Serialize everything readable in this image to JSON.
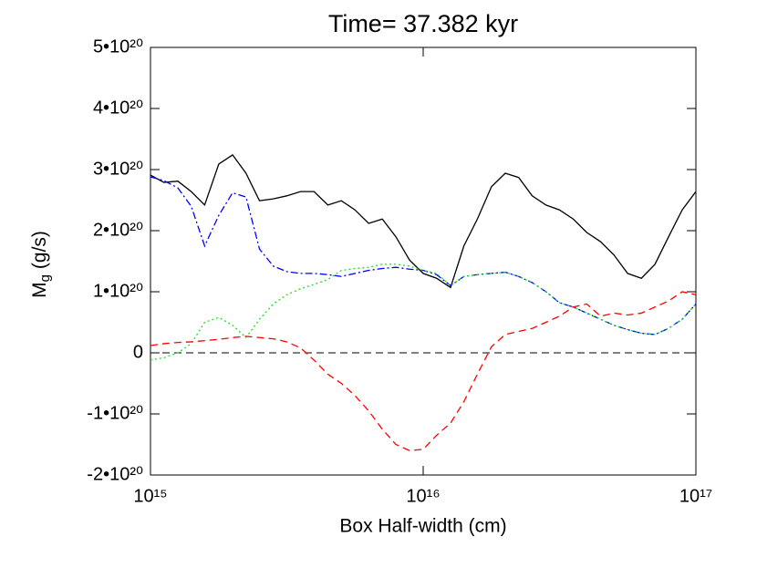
{
  "chart_data": {
    "type": "line",
    "title": "Time= 37.382 kyr",
    "xlabel": "Box Half-width (cm)",
    "ylabel": {
      "symbol": "M",
      "subscript": "g",
      "unit": "(g/s)"
    },
    "xscale": "log",
    "xlim": [
      1000000000000000.0,
      1e+17
    ],
    "xticks": [
      {
        "value": 1000000000000000.0,
        "label": "10¹⁵"
      },
      {
        "value": 1e+16,
        "label": "10¹⁶"
      },
      {
        "value": 1e+17,
        "label": "10¹⁷"
      }
    ],
    "ylim": [
      -2e+20,
      5e+20
    ],
    "yticks": [
      {
        "value": -2e+20,
        "label": "-2•10²⁰"
      },
      {
        "value": -1e+20,
        "label": "-1•10²⁰"
      },
      0,
      {
        "value": 1e+20,
        "label": "1•10²⁰"
      },
      {
        "value": 2e+20,
        "label": "2•10²⁰"
      },
      {
        "value": 3e+20,
        "label": "3•10²⁰"
      },
      {
        "value": 4e+20,
        "label": "4•10²⁰"
      },
      {
        "value": 5e+20,
        "label": "5•10²⁰"
      }
    ],
    "reference_line": 0,
    "x": [
      1000000000000000.0,
      1120000000000000.0,
      1260000000000000.0,
      1410000000000000.0,
      1580000000000000.0,
      1780000000000000.0,
      2000000000000000.0,
      2240000000000000.0,
      2510000000000000.0,
      2820000000000000.0,
      3160000000000000.0,
      3550000000000000.0,
      3980000000000000.0,
      4470000000000000.0,
      5010000000000000.0,
      5620000000000000.0,
      6310000000000000.0,
      7080000000000000.0,
      7940000000000000.0,
      8910000000000000.0,
      1e+16,
      1.12e+16,
      1.26e+16,
      1.41e+16,
      1.58e+16,
      1.78e+16,
      2e+16,
      2.24e+16,
      2.51e+16,
      2.82e+16,
      3.16e+16,
      3.55e+16,
      3.98e+16,
      4.47e+16,
      5.01e+16,
      5.62e+16,
      6.31e+16,
      7.08e+16,
      7.94e+16,
      8.91e+16,
      1e+17
    ],
    "series": [
      {
        "color": "#000000",
        "dash": "solid",
        "values": [
          2.91e+20,
          2.79e+20,
          2.81e+20,
          2.64e+20,
          2.42e+20,
          3.09e+20,
          3.24e+20,
          2.94e+20,
          2.49e+20,
          2.52e+20,
          2.57e+20,
          2.64e+20,
          2.64e+20,
          2.42e+20,
          2.49e+20,
          2.34e+20,
          2.12e+20,
          2.19e+20,
          1.9e+20,
          1.52e+20,
          1.3e+20,
          1.22e+20,
          1.07e+20,
          1.75e+20,
          2.19e+20,
          2.72e+20,
          2.94e+20,
          2.87e+20,
          2.57e+20,
          2.42e+20,
          2.34e+20,
          2.19e+20,
          1.97e+20,
          1.82e+20,
          1.6e+20,
          1.3e+20,
          1.22e+20,
          1.45e+20,
          1.9e+20,
          2.34e+20,
          2.64e+20
        ]
      },
      {
        "color": "#0000ff",
        "dash": "dashdot",
        "values": [
          2.88e+20,
          2.82e+20,
          2.7e+20,
          2.4e+20,
          1.75e+20,
          2.25e+20,
          2.62e+20,
          2.55e+20,
          1.7e+20,
          1.42e+20,
          1.33e+20,
          1.3e+20,
          1.3e+20,
          1.28e+20,
          1.25e+20,
          1.3e+20,
          1.35e+20,
          1.38e+20,
          1.4e+20,
          1.37e+20,
          1.35e+20,
          1.28e+20,
          1.1e+20,
          1.25e+20,
          1.28e+20,
          1.3e+20,
          1.32e+20,
          1.25e+20,
          1.15e+20,
          1e+20,
          8.2e+19,
          7.5e+19,
          6.5e+19,
          5.5e+19,
          4.5e+19,
          3.8e+19,
          3.2e+19,
          3e+19,
          4e+19,
          5.5e+19,
          8e+19
        ]
      },
      {
        "color": "#22dd22",
        "dash": "dotted",
        "values": [
          -1.2e+19,
          -8e+18,
          0,
          1.5e+19,
          5e+19,
          5.8e+19,
          4.5e+19,
          2.5e+19,
          5.5e+19,
          8e+19,
          9.5e+19,
          1.05e+20,
          1.12e+20,
          1.2e+20,
          1.35e+20,
          1.38e+20,
          1.4e+20,
          1.45e+20,
          1.45e+20,
          1.42e+20,
          1.35e+20,
          1.3e+20,
          1.1e+20,
          1.25e+20,
          1.28e+20,
          1.3e+20,
          1.32e+20,
          1.25e+20,
          1.15e+20,
          1e+20,
          8.2e+19,
          7.5e+19,
          6.5e+19,
          5.5e+19,
          4.5e+19,
          3.8e+19,
          3.2e+19,
          3e+19,
          4e+19,
          5.5e+19,
          8e+19
        ]
      },
      {
        "color": "#ff0000",
        "dash": "dashed",
        "values": [
          1.2e+19,
          1.5e+19,
          1.7e+19,
          1.8e+19,
          2e+19,
          2.2e+19,
          2.5e+19,
          2.7e+19,
          2.5e+19,
          2.3e+19,
          1.8e+19,
          8e+18,
          -1.2e+19,
          -3.5e+19,
          -5e+19,
          -7e+19,
          -9.5e+19,
          -1.25e+20,
          -1.5e+20,
          -1.6e+20,
          -1.58e+20,
          -1.35e+20,
          -1.15e+20,
          -8e+19,
          -3.5e+19,
          1e+19,
          3e+19,
          3.5e+19,
          4e+19,
          5e+19,
          6e+19,
          7.5e+19,
          8e+19,
          6e+19,
          6.5e+19,
          6.2e+19,
          6.5e+19,
          7.5e+19,
          8.5e+19,
          1e+20,
          9.5e+19
        ]
      }
    ]
  }
}
